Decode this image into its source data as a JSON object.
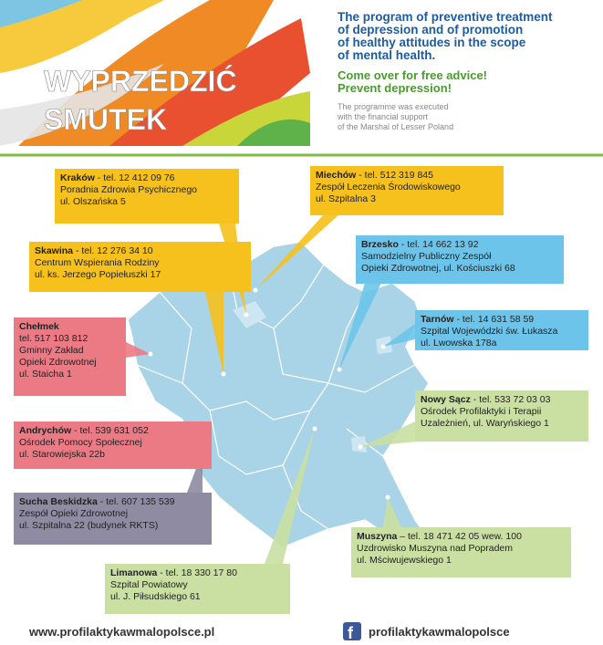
{
  "header": {
    "logo": [
      "WYPRZEDZIĆ",
      "SMUTEK"
    ],
    "title": [
      "The program of preventive treatment",
      "of depression and of promotion",
      "of healthy attitudes in the scope",
      "of mental health."
    ],
    "call": [
      "Come over for free advice!",
      "Prevent depression!"
    ],
    "note": [
      "The programme was executed",
      "with the financial support",
      "of the Marshal of Lesser Poland"
    ]
  },
  "offices": [
    {
      "city": "Kraków",
      "phone": " - tel. 12 412 09 76",
      "lines": [
        "Poradnia Zdrowia Psychicznego",
        "ul. Olszańska 5"
      ]
    },
    {
      "city": "Miechów",
      "phone": " - tel. 512 319 845",
      "lines": [
        "Zespół Leczenia Środowiskowego",
        "ul. Szpitalna 3"
      ]
    },
    {
      "city": "Skawina",
      "phone": " - tel. 12 276 34 10",
      "lines": [
        "Centrum Wspierania Rodziny",
        "ul. ks. Jerzego Popiełuszki 17"
      ]
    },
    {
      "city": "Brzesko",
      "phone": " - tel. 14 662 13 92",
      "lines": [
        "Samodzielny Publiczny Zespół",
        "Opieki Zdrowotnej, ul. Kościuszki 68"
      ]
    },
    {
      "city": "Tarnów",
      "phone": " - tel. 14 631 58 59",
      "lines": [
        "Szpital Wojewódzki św. Łukasza",
        "ul. Lwowska 178a"
      ]
    },
    {
      "city": "Chełmek",
      "phone": "",
      "lines": [
        "tel. 517 103 812",
        "Gminny Zakład",
        "Opieki Zdrowotnej",
        "ul. Staicha 1"
      ]
    },
    {
      "city": "Nowy Sącz",
      "phone": " - tel. 533 72 03 03",
      "lines": [
        "Ośrodek Profilaktyki i Terapii",
        "Uzależnień, ul. Waryńskiego 1"
      ]
    },
    {
      "city": "Andrychów",
      "phone": " - tel. 539 631 052",
      "lines": [
        "Ośrodek Pomocy Społecznej",
        "ul. Starowiejska 22b"
      ]
    },
    {
      "city": "Sucha Beskidzka",
      "phone": " - tel. 607 135 539",
      "lines": [
        "Zespół Opieki Zdrowotnej",
        "ul. Szpitalna 22 (budynek RKTS)"
      ]
    },
    {
      "city": "Muszyna",
      "phone": " – tel. 18 471 42 05 wew. 100",
      "lines": [
        "Uzdrowisko Muszyna nad Popradem",
        "ul. Mściwujewskiego 1"
      ]
    },
    {
      "city": "Limanowa",
      "phone": " - tel. 18 330 17 80",
      "lines": [
        "Szpital Powiatowy",
        "ul. J. Piłsudskiego 61"
      ]
    }
  ],
  "footer": {
    "website": "www.profilaktykawmalopolsce.pl",
    "facebook": "profilaktykawmalopolsce"
  }
}
